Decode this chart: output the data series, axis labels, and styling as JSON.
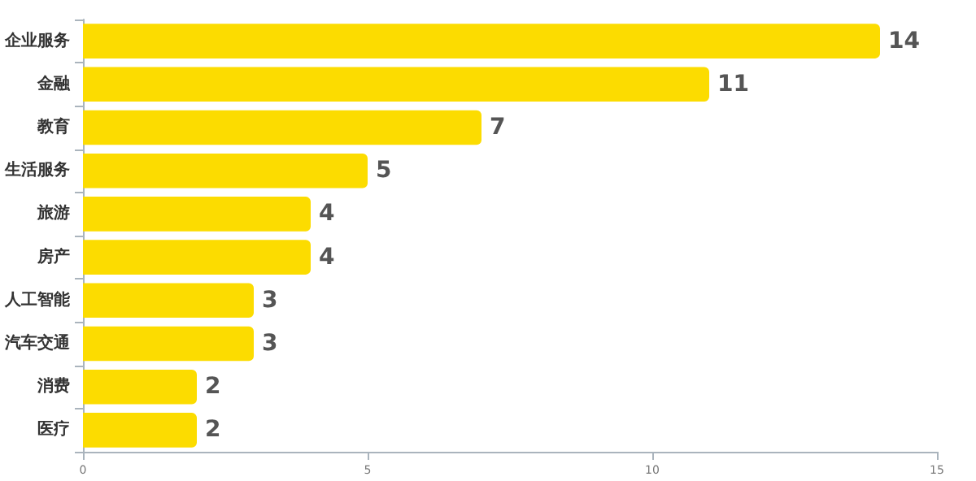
{
  "chart_data": {
    "type": "bar",
    "orientation": "horizontal",
    "categories": [
      "企业服务",
      "金融",
      "教育",
      "生活服务",
      "旅游",
      "房产",
      "人工智能",
      "汽车交通",
      "消费",
      "医疗"
    ],
    "values": [
      14,
      11,
      7,
      5,
      4,
      4,
      3,
      3,
      2,
      2
    ],
    "color": "#fcdc00",
    "xlim": [
      0,
      15
    ],
    "xticks": [
      0,
      5,
      10,
      15
    ],
    "data_labels": true
  }
}
